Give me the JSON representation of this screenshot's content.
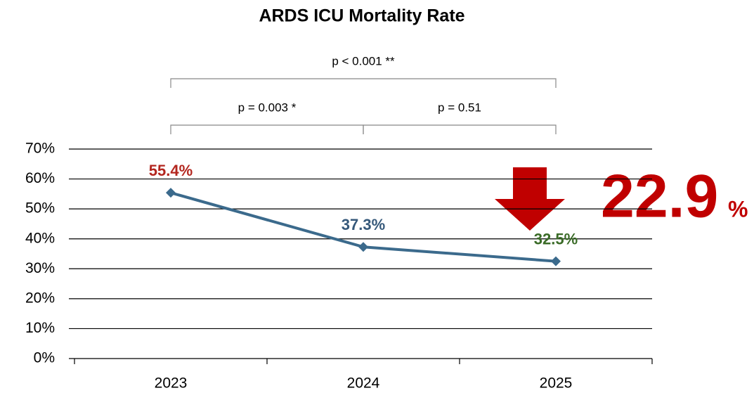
{
  "chart_data": {
    "type": "line",
    "title": "ARDS ICU Mortality Rate",
    "categories": [
      "2023",
      "2024",
      "2025"
    ],
    "series": [
      {
        "color": "#3b6a8c",
        "values": [
          55.4,
          37.3,
          32.5
        ],
        "value_labels": [
          "55.4%",
          "37.3%",
          "32.5%"
        ],
        "label_colors": [
          "#b3261e",
          "#35587a",
          "#3a6b27"
        ]
      }
    ],
    "ylim": [
      0,
      70
    ],
    "yticks": [
      {
        "value": 0,
        "label": "0%"
      },
      {
        "value": 10,
        "label": "10%"
      },
      {
        "value": 20,
        "label": "20%"
      },
      {
        "value": 30,
        "label": "30%"
      },
      {
        "value": 40,
        "label": "40%"
      },
      {
        "value": 50,
        "label": "50%"
      },
      {
        "value": 60,
        "label": "60%"
      },
      {
        "value": 70,
        "label": "70%"
      }
    ],
    "grid": true,
    "comparisons": [
      {
        "label": "p < 0.001 **",
        "from": 0,
        "to": 2
      },
      {
        "label": "p = 0.003 *",
        "from": 0,
        "to": 1
      },
      {
        "label": "p = 0.51",
        "from": 1,
        "to": 2
      }
    ],
    "reduction": {
      "number": "22.9",
      "unit": "%",
      "color": "#c00000"
    }
  }
}
